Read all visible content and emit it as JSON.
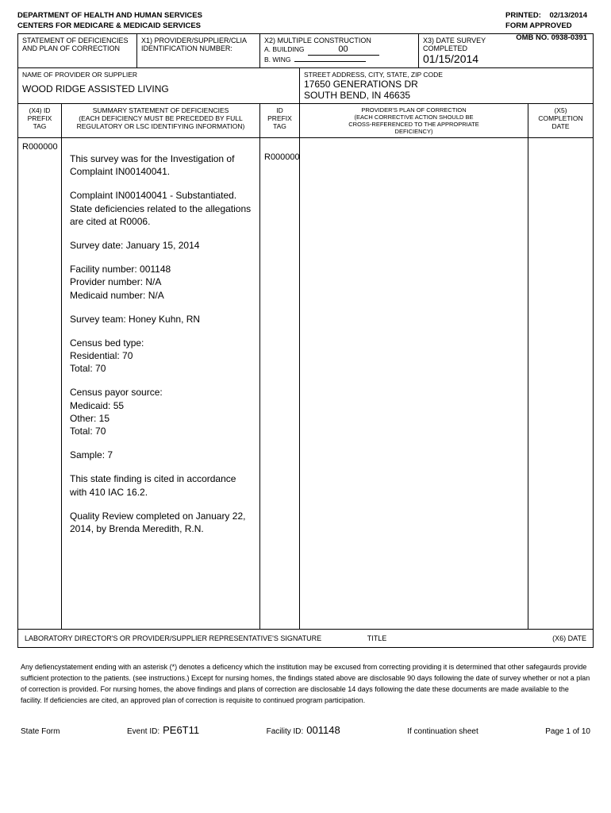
{
  "top": {
    "printed_label": "PRINTED:",
    "printed_date": "02/13/2014",
    "form_approved": "FORM APPROVED",
    "omb": "OMB NO. 0938-0391",
    "dept": "DEPARTMENT OF HEALTH AND HUMAN SERVICES",
    "centers": "CENTERS FOR MEDICARE & MEDICAID SERVICES"
  },
  "box": {
    "stmt_l1": "STATEMENT OF DEFICIENCIES",
    "stmt_l2": "AND PLAN OF CORRECTION",
    "x1_l1": "X1) PROVIDER/SUPPLIER/CLIA",
    "x1_l2": "IDENTIFICATION NUMBER:",
    "x2": "X2) MULTIPLE CONSTRUCTION",
    "bldg_label": "A. BUILDING",
    "bldg_val": "00",
    "wing_label": "B. WING",
    "x3_l1": "X3) DATE SURVEY",
    "x3_l2": "COMPLETED",
    "x3_date": "01/15/2014",
    "name_label": "NAME OF PROVIDER OR SUPPLIER",
    "provider_name": "WOOD RIDGE ASSISTED LIVING",
    "addr_label": "STREET ADDRESS, CITY, STATE, ZIP CODE",
    "addr1": "17650 GENERATIONS DR",
    "addr2": "SOUTH BEND, IN 46635"
  },
  "colhdr": {
    "x4_1": "(X4) ID",
    "x4_2": "PREFIX",
    "x4_3": "TAG",
    "sum_1": "SUMMARY STATEMENT OF DEFICIENCIES",
    "sum_2": "(EACH DEFICIENCY MUST BE PRECEDED BY FULL",
    "sum_3": "REGULATORY OR LSC IDENTIFYING INFORMATION)",
    "id_1": "ID",
    "id_2": "PREFIX",
    "id_3": "TAG",
    "plan_1": "PROVIDER'S PLAN OF CORRECTION",
    "plan_2": "(EACH CORRECTIVE ACTION SHOULD BE",
    "plan_3": "CROSS-REFERENCED TO THE APPROPRIATE",
    "plan_4": "DEFICIENCY)",
    "x5_1": "(X5)",
    "x5_2": "COMPLETION",
    "x5_3": "DATE"
  },
  "content": {
    "tag_left": "R000000",
    "tag_right": "R000000",
    "p1": "This survey was for the Investigation of Complaint IN00140041.",
    "p2": "Complaint IN00140041 - Substantiated.  State deficiencies related to the allegations are cited at R0006.",
    "p3": "Survey date:  January 15, 2014",
    "p4": "Facility number:  001148\nProvider number:  N/A\nMedicaid number:  N/A",
    "p5": "Survey team:  Honey Kuhn, RN",
    "p6": "Census bed type:\nResidential:  70\nTotal:            70",
    "p7": "Census payor source:\nMedicaid:   55\nOther:        15\nTotal:          70",
    "p8": "Sample:  7",
    "p9": "This state finding is cited in accordance with 410 IAC 16.2.",
    "p10": "Quality Review completed on January 22, 2014, by Brenda Meredith, R.N."
  },
  "sig": {
    "s1": "LABORATORY DIRECTOR'S OR PROVIDER/SUPPLIER REPRESENTATIVE'S SIGNATURE",
    "s2": "TITLE",
    "s3": "(X6) DATE"
  },
  "fineprint": "Any defiencystatement ending with an asterisk (*) denotes a deficency which the institution may be excused from correcting providing it is determined that other safegaurds provide sufficient protection to the patients. (see instructions.) Except for nursing homes, the findings stated above are disclosable 90 days following the date of survey whether or not a plan of correction is provided. For nursing homes, the above findings and plans of correction are disclosable 14 days following the date these documents are made available to the facility. If deficiencies are cited, an approved plan of correction is requisite to continued program participation.",
  "footer": {
    "state_form": "State Form",
    "event_label": "Event ID:",
    "event_id": "PE6T11",
    "facility_label": "Facility ID:",
    "facility_id": "001148",
    "cont": "If continuation sheet",
    "page": "Page 1 of 10"
  }
}
